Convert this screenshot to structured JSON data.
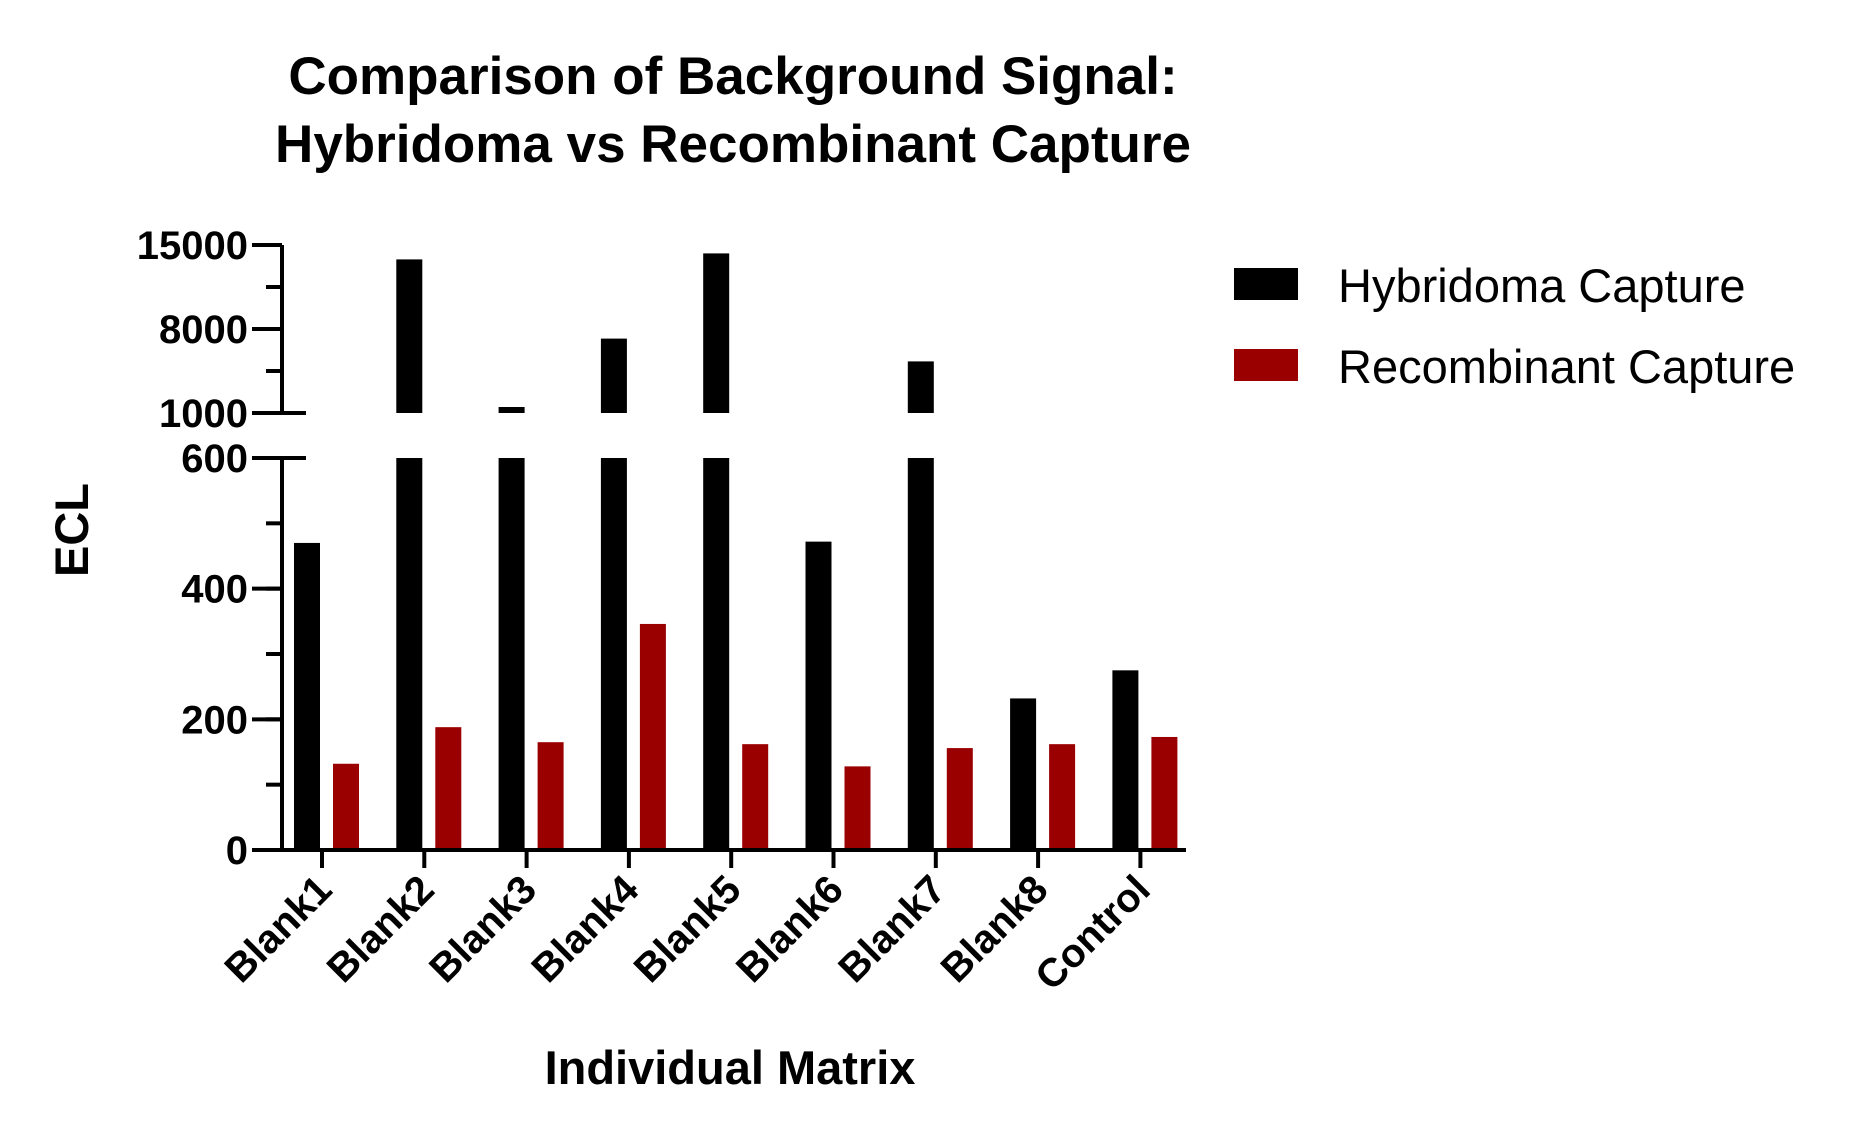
{
  "chart_data": {
    "type": "bar",
    "title_lines": [
      "Comparison of Background Signal:",
      "Hybridoma vs Recombinant Capture"
    ],
    "xlabel": "Individual Matrix",
    "ylabel": "ECL",
    "categories": [
      "Blank1",
      "Blank2",
      "Blank3",
      "Blank4",
      "Blank5",
      "Blank6",
      "Blank7",
      "Blank8",
      "Control"
    ],
    "series": [
      {
        "name": "Hybridoma Capture",
        "color": "#000000",
        "values": [
          470,
          13800,
          1300,
          7200,
          14300,
          472,
          5300,
          232,
          275
        ]
      },
      {
        "name": "Recombinant Capture",
        "color": "#9b0000",
        "values": [
          132,
          188,
          165,
          346,
          162,
          128,
          156,
          162,
          173
        ]
      }
    ],
    "y_axis": {
      "broken": true,
      "lower_segment": {
        "range": [
          0,
          600
        ],
        "ticks": [
          0,
          200,
          400,
          600
        ],
        "minor_step": 100
      },
      "upper_segment": {
        "range": [
          1000,
          15000
        ],
        "ticks": [
          1000,
          8000,
          15000
        ],
        "minor_step": 3500
      }
    },
    "legend_position": "right",
    "grid": false
  }
}
